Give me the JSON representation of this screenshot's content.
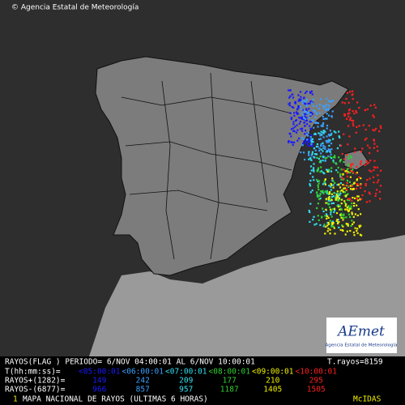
{
  "header": {
    "credit": "© Agencia Estatal de Meteorología"
  },
  "logo": {
    "name": "AEmet",
    "subtitle": "Agencia Estatal de Meteorología"
  },
  "legend": {
    "summary": "RAYOS(FLAG ) PERIODO= 6/NOV 04:00:01 AL  6/NOV 10:00:01",
    "total": "T.rayos=8159",
    "time_label": "T(hh:mm:ss)=",
    "times": [
      "<05:00:01",
      "<06:00:01",
      "<07:00:01",
      "<08:00:01",
      "<09:00:01",
      "<10:00:01"
    ],
    "colors": [
      "#1a1aff",
      "#3aa0ff",
      "#30e0f0",
      "#30d030",
      "#f0f000",
      "#ff2020"
    ],
    "positive_label": "RAYOS+(1282)=",
    "positive": [
      149,
      242,
      209,
      177,
      210,
      295
    ],
    "negative_label": "RAYOS-(6877)=",
    "negative": [
      966,
      857,
      957,
      1187,
      1405,
      1505
    ]
  },
  "footer": {
    "number": "1",
    "title": "MAPA NACIONAL DE RAYOS (ULTIMAS 6 HORAS)",
    "system": "McIDAS"
  }
}
